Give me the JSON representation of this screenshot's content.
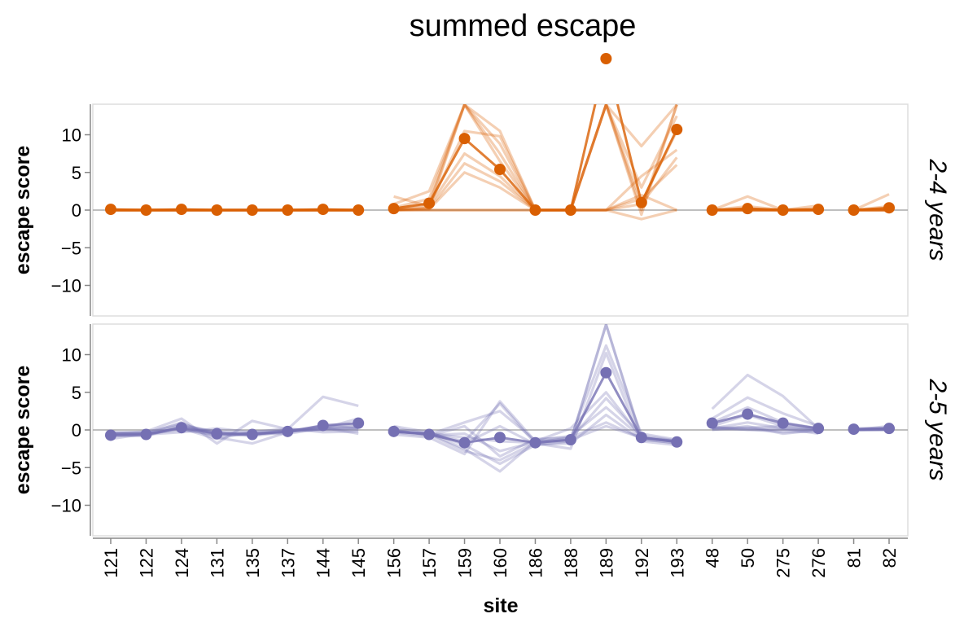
{
  "chart_data": {
    "type": "line",
    "title": "summed escape",
    "xlabel": "site",
    "ylabel": "escape score",
    "ylim": [
      -14,
      14
    ],
    "yticks": [
      10,
      5,
      0,
      -5,
      -10
    ],
    "categories": [
      "121",
      "122",
      "124",
      "131",
      "135",
      "137",
      "144",
      "145",
      "156",
      "157",
      "159",
      "160",
      "186",
      "188",
      "189",
      "192",
      "193",
      "48",
      "50",
      "275",
      "276",
      "81",
      "82"
    ],
    "segments": [
      [
        0,
        7
      ],
      [
        8,
        16
      ],
      [
        17,
        20
      ],
      [
        21,
        22
      ]
    ],
    "facets": [
      {
        "label": "2-4 years",
        "color": "#d95f02",
        "summed": [
          0.1,
          0.0,
          0.1,
          0.0,
          0.0,
          0.0,
          0.1,
          0.0,
          0.2,
          0.9,
          9.5,
          5.4,
          0.0,
          0.0,
          20.3,
          1.0,
          10.7,
          0.0,
          0.2,
          0.0,
          0.1,
          0.0,
          0.3
        ],
        "overflow_marks": [
          {
            "category": "189",
            "value": 20.3
          }
        ],
        "individual": [
          [
            0,
            0,
            0,
            0,
            0,
            0,
            0,
            0,
            1.8,
            0.5,
            10.5,
            9.8,
            0,
            0,
            14,
            0,
            14,
            0,
            1.8,
            0,
            0.6,
            0,
            2.1
          ],
          [
            0,
            0,
            0,
            0,
            0,
            0,
            0,
            0,
            0.8,
            2.5,
            14,
            10.5,
            0,
            0,
            14,
            8.5,
            14,
            0,
            0.5,
            0,
            0.2,
            0,
            0.5
          ],
          [
            0,
            0,
            0,
            0,
            0,
            0,
            0,
            0,
            0.3,
            1.5,
            14,
            8.8,
            0,
            0,
            14,
            -0.6,
            14,
            0,
            0.2,
            0,
            0,
            0,
            0.2
          ],
          [
            0,
            0,
            0,
            0,
            0,
            0,
            0,
            0,
            0.2,
            0.8,
            14,
            7.5,
            0,
            0,
            14,
            3.0,
            12.5,
            0,
            0.1,
            0,
            0,
            0,
            0.1
          ],
          [
            0,
            0,
            0,
            0,
            0,
            0,
            0,
            0,
            0,
            0.3,
            14,
            6.5,
            0,
            0,
            14,
            1.0,
            10.5,
            0,
            0,
            0,
            0,
            0,
            0
          ],
          [
            0,
            0,
            0,
            0,
            0,
            0,
            0,
            0,
            0,
            0.5,
            7.5,
            4.5,
            0,
            0,
            0,
            4.5,
            8.0,
            0,
            0,
            0,
            0,
            0,
            0
          ],
          [
            0,
            0,
            0,
            0,
            0,
            0,
            0,
            0,
            0,
            0.2,
            6.2,
            3.8,
            0,
            0,
            0,
            0.8,
            7.0,
            0,
            0,
            0,
            0,
            0,
            0
          ],
          [
            0,
            0,
            0,
            0,
            0,
            0,
            0,
            0,
            0,
            0.1,
            5.0,
            3.0,
            0,
            0,
            0,
            1.5,
            6.0,
            0,
            0,
            0,
            0,
            0,
            0
          ],
          [
            0,
            0,
            0,
            0,
            0,
            0,
            0,
            0,
            0,
            0,
            0,
            0,
            0,
            0,
            0,
            2.0,
            0,
            0,
            0,
            0,
            0,
            0,
            0
          ],
          [
            0,
            0,
            0,
            0,
            0,
            0,
            0,
            0,
            0,
            0,
            0,
            0,
            0,
            0,
            0,
            -1.2,
            0,
            0,
            0,
            0,
            0,
            0,
            0
          ]
        ]
      },
      {
        "label": "2-5 years",
        "color": "#7570b3",
        "summed": [
          -0.7,
          -0.6,
          0.3,
          -0.5,
          -0.6,
          -0.2,
          0.6,
          0.9,
          -0.2,
          -0.6,
          -1.7,
          -1.0,
          -1.7,
          -1.3,
          7.6,
          -1.0,
          -1.6,
          0.9,
          2.1,
          0.9,
          0.2,
          0.1,
          0.2
        ],
        "overflow_marks": [],
        "individual": [
          [
            -0.5,
            -0.2,
            1.5,
            -1.8,
            1.2,
            0.1,
            4.4,
            3.2,
            -0.6,
            -1.0,
            -3.2,
            3.8,
            -1.5,
            -1.5,
            14,
            -1.0,
            -1.5,
            2.8,
            7.3,
            4.5,
            0.2,
            0,
            0.5
          ],
          [
            -1.2,
            -0.5,
            1.0,
            -1.0,
            -1.8,
            -0.3,
            0.5,
            0.3,
            0.5,
            -0.3,
            -2.0,
            -4.5,
            -2.0,
            -1.5,
            14,
            -1.2,
            -1.8,
            1.5,
            4.3,
            2.2,
            0.5,
            0.2,
            0.3
          ],
          [
            -0.8,
            -0.8,
            0.5,
            -0.3,
            -0.5,
            -0.5,
            0.2,
            1.5,
            -0.3,
            -0.8,
            0.5,
            -3.5,
            -1.2,
            -1.0,
            11.2,
            -0.5,
            -1.3,
            1.0,
            3.0,
            1.0,
            0.2,
            0,
            0.2
          ],
          [
            -0.5,
            -0.6,
            -0.3,
            0.2,
            -0.3,
            0.2,
            -0.3,
            -0.2,
            -0.2,
            -0.5,
            -1.5,
            3.5,
            -1.8,
            -2.5,
            10.2,
            -1.5,
            -2.0,
            0.5,
            2.0,
            0.5,
            0,
            0.1,
            0.1
          ],
          [
            -0.3,
            -0.3,
            0.8,
            -0.5,
            -0.8,
            -0.2,
            0.1,
            0.2,
            0.2,
            -0.5,
            -2.5,
            -5.5,
            -1.5,
            0.2,
            5.0,
            -1.0,
            -1.5,
            0.2,
            1.0,
            0.2,
            -0.5,
            0,
            0
          ],
          [
            -0.6,
            -0.4,
            0.2,
            -1.2,
            -0.2,
            -0.1,
            0.3,
            -0.5,
            0,
            -0.7,
            -0.5,
            -2.8,
            -1.6,
            -1.2,
            4.2,
            -0.8,
            -1.4,
            0,
            0.5,
            -0.5,
            0,
            0,
            0.2
          ],
          [
            -0.4,
            -0.5,
            0,
            -0.6,
            -0.6,
            0,
            0,
            0,
            -0.1,
            -0.6,
            1.0,
            2.5,
            -1.4,
            -0.8,
            3.0,
            -1.0,
            -1.6,
            0.3,
            0.3,
            0.5,
            0.1,
            0,
            0.1
          ],
          [
            -0.7,
            -0.7,
            0.4,
            -0.4,
            -0.4,
            -0.3,
            0.4,
            0.8,
            -0.3,
            -0.4,
            -1.8,
            0.5,
            -1.9,
            -1.8,
            2.0,
            -1.3,
            -1.7,
            0.1,
            0.1,
            -0.3,
            -0.2,
            0,
            0
          ],
          [
            -0.5,
            -0.4,
            0.6,
            -0.2,
            -0.7,
            0,
            0.2,
            0.5,
            -0.2,
            -0.5,
            -1.0,
            -1.5,
            -1.7,
            -1.0,
            1.0,
            -1.1,
            -1.5,
            0.4,
            0,
            0,
            0,
            0.1,
            0.1
          ],
          [
            -0.6,
            -0.6,
            0.2,
            -0.8,
            -0.5,
            -0.2,
            0.1,
            0.3,
            -0.2,
            -0.6,
            -2.8,
            -4.0,
            -1.7,
            -1.3,
            0.5,
            -1.0,
            -1.6,
            0.2,
            0.2,
            0.1,
            0.1,
            0,
            0.1
          ]
        ]
      }
    ]
  }
}
